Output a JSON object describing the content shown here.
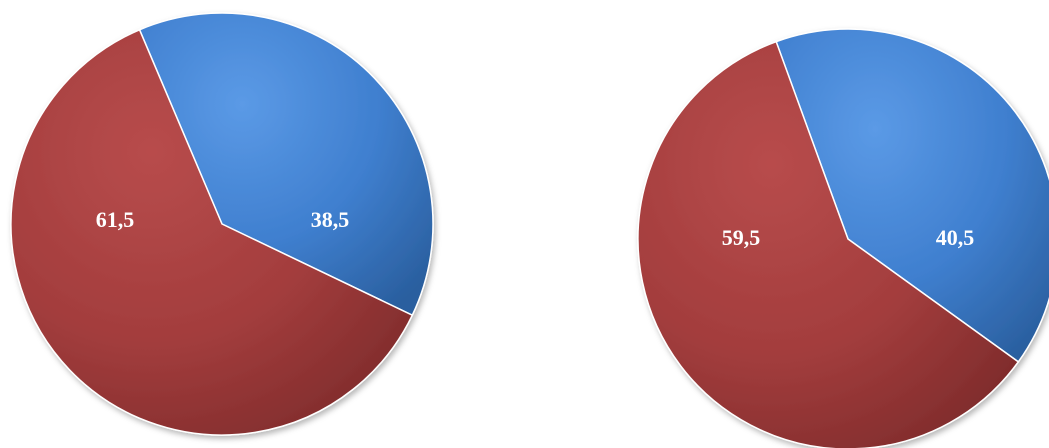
{
  "chart_data": [
    {
      "type": "pie",
      "title": "",
      "categories": [
        "",
        ""
      ],
      "values": [
        38.5,
        61.5
      ],
      "labels": [
        "38,5",
        "61,5"
      ],
      "colors": [
        "#3f7fcf",
        "#a33d3d"
      ],
      "legend": "none"
    },
    {
      "type": "pie",
      "title": "",
      "categories": [
        "",
        ""
      ],
      "values": [
        40.5,
        59.5
      ],
      "labels": [
        "40,5",
        "59,5"
      ],
      "colors": [
        "#3f7fcf",
        "#a33d3d"
      ],
      "legend": "none"
    }
  ]
}
